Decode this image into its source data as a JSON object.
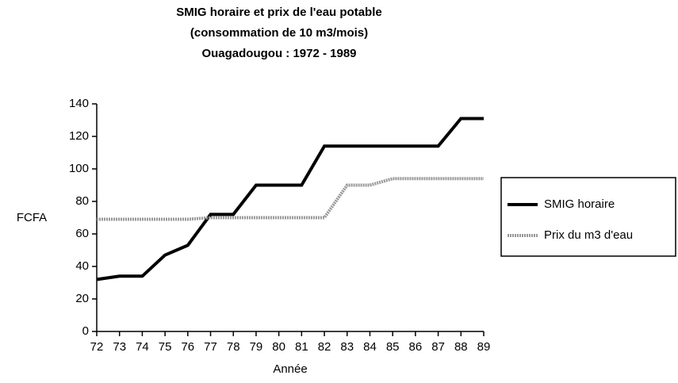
{
  "chart_data": {
    "type": "line",
    "title": [
      "SMIG horaire et prix de l'eau potable",
      "(consommation de 10 m3/mois)",
      "Ouagadougou : 1972 - 1989"
    ],
    "x_label": "Année",
    "y_label": "FCFA",
    "categories": [
      "72",
      "73",
      "74",
      "75",
      "76",
      "77",
      "78",
      "79",
      "80",
      "81",
      "82",
      "83",
      "84",
      "85",
      "86",
      "87",
      "88",
      "89"
    ],
    "series": [
      {
        "name": "SMIG horaire",
        "color": "#000000",
        "values": [
          32,
          34,
          34,
          47,
          53,
          72,
          72,
          90,
          90,
          90,
          114,
          114,
          114,
          114,
          114,
          114,
          131,
          131
        ]
      },
      {
        "name": "Prix du m3 d'eau",
        "color": "#999999",
        "values": [
          69,
          69,
          69,
          69,
          69,
          70,
          70,
          70,
          70,
          70,
          70,
          90,
          90,
          94,
          94,
          94,
          94,
          94
        ]
      }
    ],
    "ylim": [
      0,
      140
    ],
    "yticks": [
      0,
      20,
      40,
      60,
      80,
      100,
      120,
      140
    ],
    "legend": "right"
  }
}
